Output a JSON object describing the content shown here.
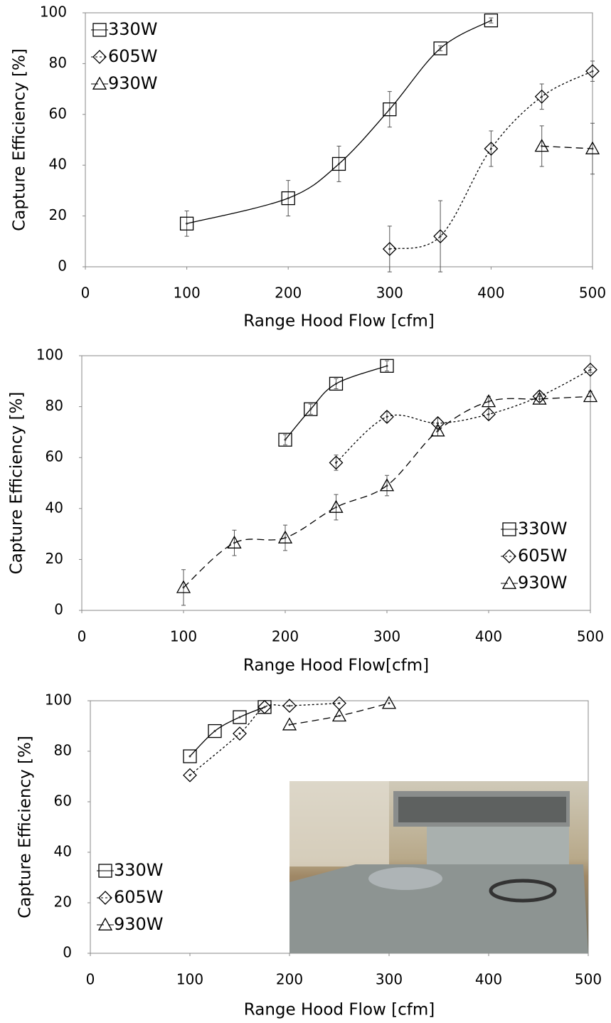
{
  "chart_data": [
    {
      "type": "line",
      "xlabel": "Range Hood Flow [cfm]",
      "ylabel": "Capture Efficiency [%]",
      "xlim": [
        0,
        500
      ],
      "xticks": [
        0,
        100,
        200,
        300,
        400,
        500
      ],
      "ylim": [
        0,
        100
      ],
      "yticks": [
        0,
        20,
        40,
        60,
        80,
        100
      ],
      "legend": "upper left",
      "series": [
        {
          "name": "330W",
          "color": "#000000",
          "marker": "square",
          "dash": "solid",
          "x": [
            100,
            200,
            250,
            300,
            350,
            400
          ],
          "values": [
            17,
            27,
            40.5,
            62,
            86,
            97
          ],
          "errors": [
            5,
            7,
            7,
            7,
            1,
            1
          ]
        },
        {
          "name": "605W",
          "color": "#000000",
          "marker": "diamond",
          "dash": "dotted",
          "x": [
            300,
            350,
            400,
            450,
            500
          ],
          "values": [
            7,
            12,
            46.5,
            67,
            77
          ],
          "errors": [
            9,
            14,
            7,
            5,
            4
          ]
        },
        {
          "name": "930W",
          "color": "#000000",
          "marker": "triangle",
          "dash": "dashed",
          "x": [
            450,
            500
          ],
          "values": [
            47.5,
            46.5
          ],
          "errors": [
            8,
            10
          ]
        }
      ]
    },
    {
      "type": "line",
      "xlabel": "Range Hood Flow[cfm]",
      "ylabel": "Capture Efficiency [%]",
      "xlim": [
        0,
        500
      ],
      "xticks": [
        0,
        100,
        200,
        300,
        400,
        500
      ],
      "ylim": [
        0,
        100
      ],
      "yticks": [
        0,
        20,
        40,
        60,
        80,
        100
      ],
      "legend": "lower right",
      "series": [
        {
          "name": "330W",
          "color": "#000000",
          "marker": "square",
          "dash": "solid",
          "x": [
            200,
            225,
            250,
            300
          ],
          "values": [
            67,
            79,
            89,
            96
          ],
          "errors": [
            2,
            2,
            2,
            2
          ]
        },
        {
          "name": "605W",
          "color": "#000000",
          "marker": "diamond",
          "dash": "dotted",
          "x": [
            250,
            300,
            350,
            400,
            450,
            500
          ],
          "values": [
            58,
            76,
            73.5,
            77,
            84,
            94.5
          ],
          "errors": [
            3,
            2,
            2,
            2,
            2,
            1
          ]
        },
        {
          "name": "930W",
          "color": "#000000",
          "marker": "triangle",
          "dash": "dashed",
          "x": [
            100,
            150,
            200,
            250,
            300,
            350,
            400,
            450,
            500
          ],
          "values": [
            9,
            26.5,
            28.5,
            40.5,
            49,
            70.5,
            82,
            83,
            84
          ],
          "errors": [
            7,
            5,
            5,
            5,
            4,
            2,
            2,
            2,
            2
          ]
        }
      ]
    },
    {
      "type": "line",
      "xlabel": "Range Hood Flow [cfm]",
      "ylabel": "Capture Efficiency [%]",
      "xlim": [
        0,
        500
      ],
      "xticks": [
        0,
        100,
        200,
        300,
        400,
        500
      ],
      "ylim": [
        0,
        100
      ],
      "yticks": [
        0,
        20,
        40,
        60,
        80,
        100
      ],
      "legend": "lower left",
      "series": [
        {
          "name": "330W",
          "color": "#000000",
          "marker": "square",
          "dash": "solid",
          "x": [
            100,
            125,
            150,
            175
          ],
          "values": [
            78,
            88,
            93.5,
            97.5
          ]
        },
        {
          "name": "605W",
          "color": "#000000",
          "marker": "diamond",
          "dash": "dotted",
          "x": [
            100,
            150,
            175,
            200,
            250
          ],
          "values": [
            70.5,
            87,
            97.5,
            98,
            99
          ]
        },
        {
          "name": "930W",
          "color": "#000000",
          "marker": "triangle",
          "dash": "dashed",
          "x": [
            200,
            250,
            300
          ],
          "values": [
            90.5,
            94,
            99
          ]
        }
      ]
    }
  ]
}
